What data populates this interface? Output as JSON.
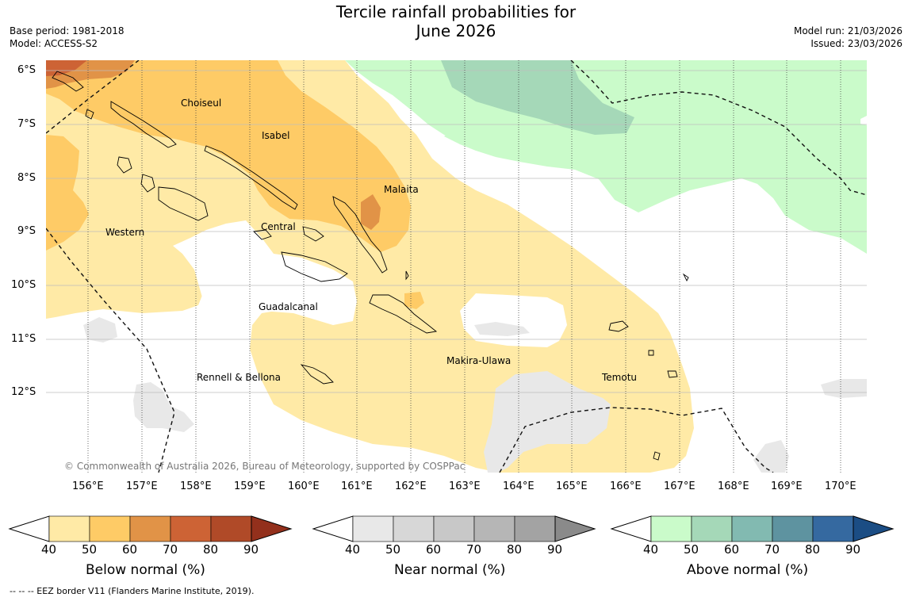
{
  "title_line1": "Tercile rainfall probabilities for",
  "title_line2": "June 2026",
  "meta_left": {
    "base_period": "Base period: 1981-2018",
    "model": "Model: ACCESS-S2"
  },
  "meta_right": {
    "model_run": "Model run: 21/03/2026",
    "issued": "Issued: 23/03/2026"
  },
  "lat_labels": [
    "6°S",
    "7°S",
    "8°S",
    "9°S",
    "10°S",
    "11°S",
    "12°S"
  ],
  "lon_labels": [
    "156°E",
    "157°E",
    "158°E",
    "159°E",
    "160°E",
    "161°E",
    "162°E",
    "163°E",
    "164°E",
    "165°E",
    "166°E",
    "167°E",
    "168°E",
    "169°E",
    "170°E"
  ],
  "provinces": [
    "Choiseul",
    "Isabel",
    "Malaita",
    "Western",
    "Central",
    "Guadalcanal",
    "Makira-Ulawa",
    "Rennell & Bellona",
    "Temotu"
  ],
  "copyright": "© Commonwealth of Australia 2026, Bureau of Meteorology, supported by COSPPac",
  "colorbars": [
    {
      "title": "Below normal (%)",
      "ticks": [
        "40",
        "50",
        "60",
        "70",
        "80",
        "90"
      ],
      "colors": [
        "#ffeaa6",
        "#fecb66",
        "#e19347",
        "#cd6335",
        "#b04a28",
        "#93301c"
      ]
    },
    {
      "title": "Near normal (%)",
      "ticks": [
        "40",
        "50",
        "60",
        "70",
        "80",
        "90"
      ],
      "colors": [
        "#e8e8e8",
        "#d7d7d7",
        "#c8c8c8",
        "#b6b6b6",
        "#a3a3a3",
        "#8a8a8a"
      ]
    },
    {
      "title": "Above normal (%)",
      "ticks": [
        "40",
        "50",
        "60",
        "70",
        "80",
        "90"
      ],
      "colors": [
        "#cafbca",
        "#a5d8b8",
        "#82bab1",
        "#5e93a0",
        "#3569a0",
        "#1b4d84"
      ]
    }
  ],
  "footer": "--  --  -- EEZ border V11 (Flanders Marine Institute, 2019)."
}
